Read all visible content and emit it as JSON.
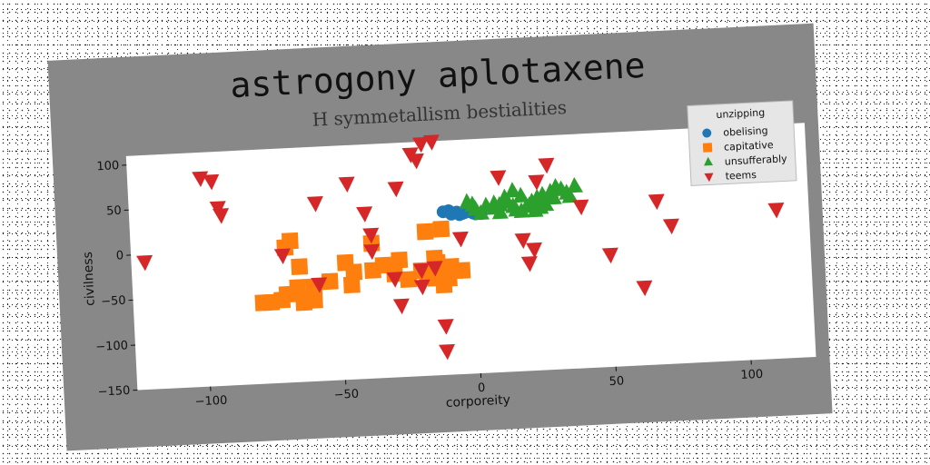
{
  "chart_data": {
    "type": "scatter",
    "title": "astrogony aplotaxene",
    "subtitle": "H symmetallism bestialities",
    "xlabel": "corporeity",
    "ylabel": "civilness",
    "xlim": [
      -127,
      124
    ],
    "ylim": [
      -150,
      110
    ],
    "xticks": [
      -100,
      -50,
      0,
      50,
      100
    ],
    "yticks": [
      -150,
      -100,
      -50,
      0,
      50,
      100
    ],
    "grid": false,
    "legend": {
      "title": "unzipping",
      "position": "top-right"
    },
    "series": [
      {
        "name": "obelising",
        "marker": "circle",
        "color": "#1f77b4",
        "points": [
          [
            -11,
            31
          ],
          [
            -9,
            32
          ],
          [
            -6,
            30
          ],
          [
            -4,
            28
          ],
          [
            -2,
            30
          ],
          [
            0,
            28
          ],
          [
            -8,
            28
          ],
          [
            -5,
            27
          ],
          [
            1,
            27
          ],
          [
            3,
            27
          ],
          [
            -3,
            29
          ]
        ]
      },
      {
        "name": "capitative",
        "marker": "square",
        "color": "#ff7f0e",
        "points": [
          [
            -79,
            -60
          ],
          [
            -76,
            -60
          ],
          [
            -72,
            -58
          ],
          [
            -70,
            -52
          ],
          [
            -64,
            -62
          ],
          [
            -60,
            -60
          ],
          [
            -66,
            -45
          ],
          [
            -60,
            -45
          ],
          [
            -65,
            -22
          ],
          [
            -70,
            0
          ],
          [
            -68,
            7
          ],
          [
            -54,
            -40
          ],
          [
            -48,
            -20
          ],
          [
            -45,
            -31
          ],
          [
            -46,
            -45
          ],
          [
            -38,
            -30
          ],
          [
            -38,
            0
          ],
          [
            -34,
            -25
          ],
          [
            -30,
            -35
          ],
          [
            -28,
            -20
          ],
          [
            -25,
            -42
          ],
          [
            -20,
            -33
          ],
          [
            -18,
            -38
          ],
          [
            -15,
            -42
          ],
          [
            -12,
            -50
          ],
          [
            -10,
            -43
          ],
          [
            -9,
            -30
          ],
          [
            -14,
            -25
          ],
          [
            -15,
            -20
          ],
          [
            -18,
            10
          ],
          [
            -12,
            12
          ],
          [
            -5,
            -35
          ]
        ]
      },
      {
        "name": "unsufferably",
        "marker": "triangle-up",
        "color": "#2ca02c",
        "points": [
          [
            -2,
            40
          ],
          [
            0,
            37
          ],
          [
            1,
            32
          ],
          [
            3,
            27
          ],
          [
            5,
            35
          ],
          [
            8,
            37
          ],
          [
            10,
            35
          ],
          [
            13,
            38
          ],
          [
            15,
            33
          ],
          [
            16,
            29
          ],
          [
            18,
            27
          ],
          [
            20,
            32
          ],
          [
            22,
            37
          ],
          [
            24,
            41
          ],
          [
            26,
            44
          ],
          [
            29,
            47
          ],
          [
            31,
            52
          ],
          [
            33,
            49
          ],
          [
            35,
            45
          ],
          [
            36,
            41
          ],
          [
            38,
            52
          ],
          [
            30,
            40
          ],
          [
            27,
            33
          ],
          [
            25,
            30
          ],
          [
            23,
            27
          ],
          [
            21,
            33
          ],
          [
            18,
            44
          ],
          [
            12,
            43
          ],
          [
            10,
            27
          ],
          [
            8,
            32
          ],
          [
            15,
            50
          ]
        ]
      },
      {
        "name": "teems",
        "marker": "triangle-down",
        "color": "#d62728",
        "points": [
          [
            -122,
            -8
          ],
          [
            -100,
            82
          ],
          [
            -96,
            78
          ],
          [
            -94,
            48
          ],
          [
            -93,
            40
          ],
          [
            -71,
            -8
          ],
          [
            -58,
            48
          ],
          [
            -58,
            -42
          ],
          [
            -46,
            68
          ],
          [
            -40,
            34
          ],
          [
            -38,
            10
          ],
          [
            -38,
            -8
          ],
          [
            -30,
            -40
          ],
          [
            -28,
            -70
          ],
          [
            -28,
            60
          ],
          [
            -22,
            97
          ],
          [
            -20,
            90
          ],
          [
            -18,
            108
          ],
          [
            -14,
            110
          ],
          [
            -15,
            -30
          ],
          [
            -20,
            -50
          ],
          [
            -12,
            -95
          ],
          [
            -12,
            -123
          ],
          [
            -20,
            -32
          ],
          [
            -5,
            1
          ],
          [
            10,
            67
          ],
          [
            18,
            -4
          ],
          [
            20,
            -30
          ],
          [
            22,
            -15
          ],
          [
            24,
            60
          ],
          [
            28,
            78
          ],
          [
            40,
            30
          ],
          [
            50,
            -25
          ],
          [
            62,
            -63
          ],
          [
            68,
            32
          ],
          [
            73,
            4
          ],
          [
            112,
            16
          ]
        ]
      }
    ]
  }
}
